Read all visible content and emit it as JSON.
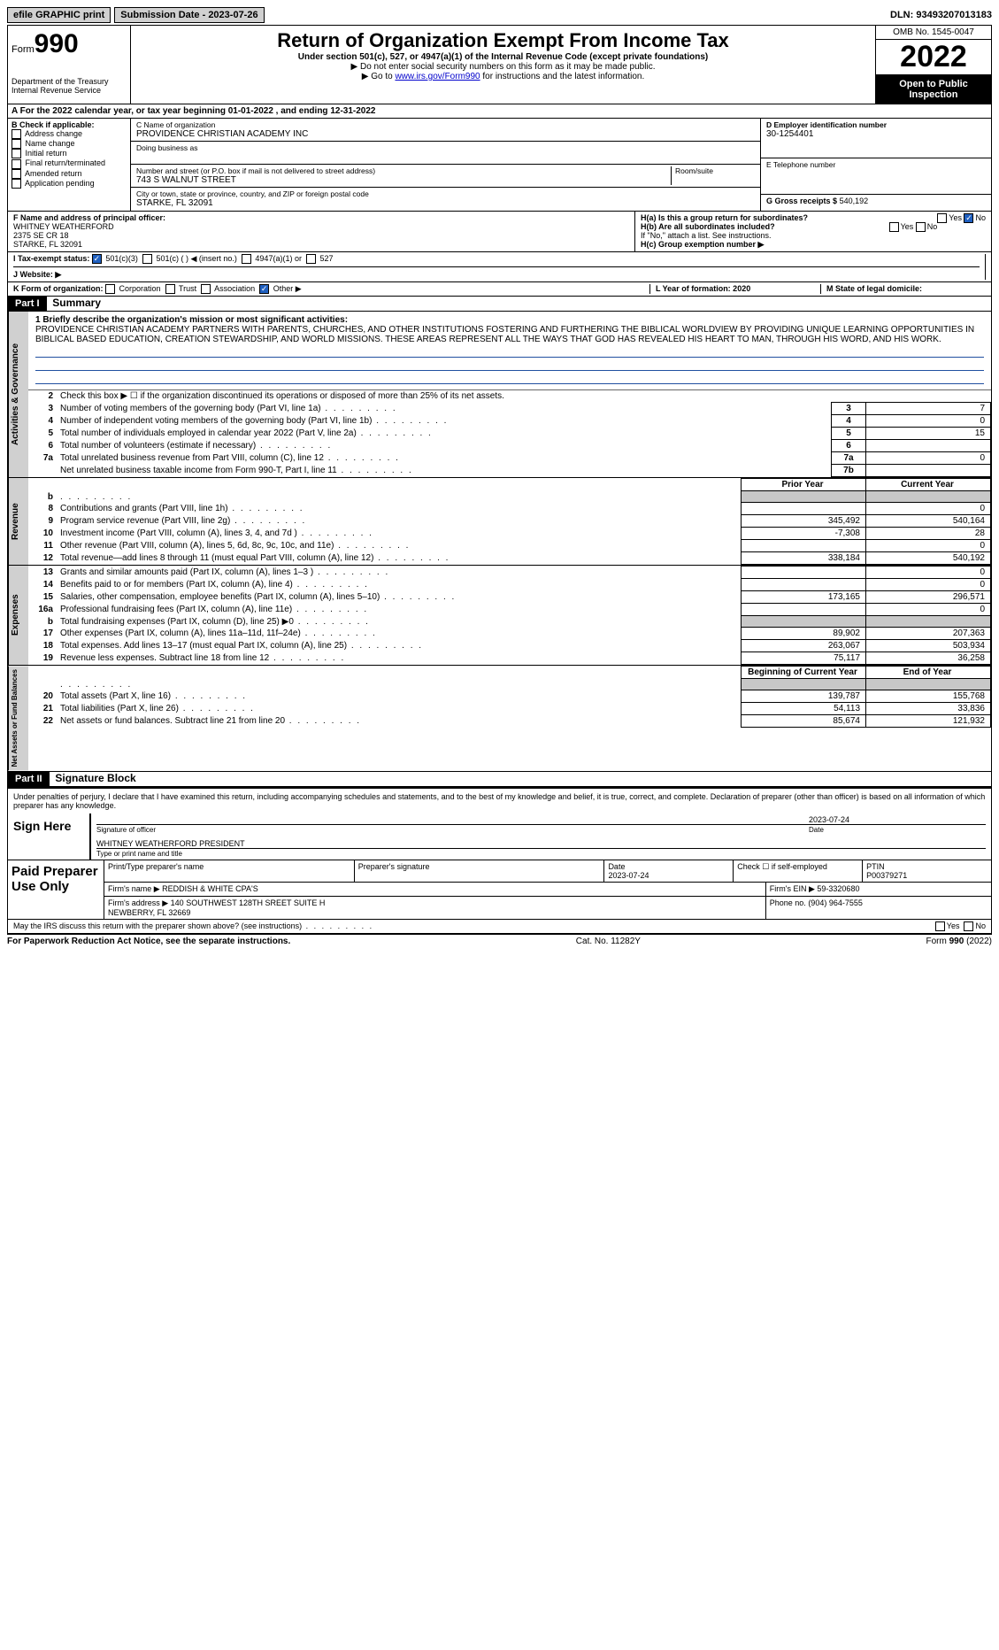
{
  "topbar": {
    "efile": "efile GRAPHIC print",
    "submission": "Submission Date - 2023-07-26",
    "dln": "DLN: 93493207013183"
  },
  "header": {
    "form_prefix": "Form",
    "form_num": "990",
    "title": "Return of Organization Exempt From Income Tax",
    "subtitle": "Under section 501(c), 527, or 4947(a)(1) of the Internal Revenue Code (except private foundations)",
    "note1": "▶ Do not enter social security numbers on this form as it may be made public.",
    "note2_pre": "▶ Go to ",
    "note2_link": "www.irs.gov/Form990",
    "note2_post": " for instructions and the latest information.",
    "dept": "Department of the Treasury\nInternal Revenue Service",
    "omb": "OMB No. 1545-0047",
    "year": "2022",
    "open": "Open to Public Inspection"
  },
  "section_a": "A For the 2022 calendar year, or tax year beginning 01-01-2022   , and ending 12-31-2022",
  "section_b": {
    "title": "B Check if applicable:",
    "items": [
      "Address change",
      "Name change",
      "Initial return",
      "Final return/terminated",
      "Amended return",
      "Application pending"
    ]
  },
  "section_c": {
    "name_lbl": "C Name of organization",
    "name": "PROVIDENCE CHRISTIAN ACADEMY INC",
    "dba_lbl": "Doing business as",
    "addr_lbl": "Number and street (or P.O. box if mail is not delivered to street address)",
    "addr": "743 S WALNUT STREET",
    "room_lbl": "Room/suite",
    "city_lbl": "City or town, state or province, country, and ZIP or foreign postal code",
    "city": "STARKE, FL  32091"
  },
  "section_d": {
    "ein_lbl": "D Employer identification number",
    "ein": "30-1254401",
    "tel_lbl": "E Telephone number",
    "gross_lbl": "G Gross receipts $",
    "gross": "540,192"
  },
  "section_f": {
    "lbl": "F  Name and address of principal officer:",
    "name": "WHITNEY WEATHERFORD",
    "addr1": "2375 SE CR 18",
    "addr2": "STARKE, FL  32091"
  },
  "section_h": {
    "ha": "H(a)  Is this a group return for subordinates?",
    "hb": "H(b)  Are all subordinates included?",
    "hb_note": "If \"No,\" attach a list. See instructions.",
    "hc": "H(c)  Group exemption number ▶"
  },
  "section_i": {
    "lbl": "I   Tax-exempt status:",
    "opts": [
      "501(c)(3)",
      "501(c) (  ) ◀ (insert no.)",
      "4947(a)(1) or",
      "527"
    ]
  },
  "section_j": "J   Website: ▶",
  "section_k": {
    "lbl": "K Form of organization:",
    "opts": [
      "Corporation",
      "Trust",
      "Association",
      "Other ▶"
    ]
  },
  "section_l": "L Year of formation: 2020",
  "section_m": "M State of legal domicile:",
  "part1": {
    "header": "Part I",
    "title": "Summary",
    "q1": "1  Briefly describe the organization's mission or most significant activities:",
    "mission": "PROVIDENCE CHRISTIAN ACADEMY PARTNERS WITH PARENTS, CHURCHES, AND OTHER INSTITUTIONS FOSTERING AND FURTHERING THE BIBLICAL WORLDVIEW BY PROVIDING UNIQUE LEARNING OPPORTUNITIES IN BIBLICAL BASED EDUCATION, CREATION STEWARDSHIP, AND WORLD MISSIONS. THESE AREAS REPRESENT ALL THE WAYS THAT GOD HAS REVEALED HIS HEART TO MAN, THROUGH HIS WORD, AND HIS WORK.",
    "q2": "Check this box ▶ ☐  if the organization discontinued its operations or disposed of more than 25% of its net assets.",
    "rows_gov": [
      {
        "n": "3",
        "t": "Number of voting members of the governing body (Part VI, line 1a)",
        "ln": "3",
        "v": "7"
      },
      {
        "n": "4",
        "t": "Number of independent voting members of the governing body (Part VI, line 1b)",
        "ln": "4",
        "v": "0"
      },
      {
        "n": "5",
        "t": "Total number of individuals employed in calendar year 2022 (Part V, line 2a)",
        "ln": "5",
        "v": "15"
      },
      {
        "n": "6",
        "t": "Total number of volunteers (estimate if necessary)",
        "ln": "6",
        "v": ""
      },
      {
        "n": "7a",
        "t": "Total unrelated business revenue from Part VIII, column (C), line 12",
        "ln": "7a",
        "v": "0"
      },
      {
        "n": "",
        "t": "Net unrelated business taxable income from Form 990-T, Part I, line 11",
        "ln": "7b",
        "v": ""
      }
    ],
    "hdr_py": "Prior Year",
    "hdr_cy": "Current Year",
    "rows_rev": [
      {
        "n": "b",
        "t": "",
        "py": "",
        "cy": "",
        "grey": true
      },
      {
        "n": "8",
        "t": "Contributions and grants (Part VIII, line 1h)",
        "py": "",
        "cy": "0"
      },
      {
        "n": "9",
        "t": "Program service revenue (Part VIII, line 2g)",
        "py": "345,492",
        "cy": "540,164"
      },
      {
        "n": "10",
        "t": "Investment income (Part VIII, column (A), lines 3, 4, and 7d )",
        "py": "-7,308",
        "cy": "28"
      },
      {
        "n": "11",
        "t": "Other revenue (Part VIII, column (A), lines 5, 6d, 8c, 9c, 10c, and 11e)",
        "py": "",
        "cy": "0"
      },
      {
        "n": "12",
        "t": "Total revenue—add lines 8 through 11 (must equal Part VIII, column (A), line 12)",
        "py": "338,184",
        "cy": "540,192"
      }
    ],
    "rows_exp": [
      {
        "n": "13",
        "t": "Grants and similar amounts paid (Part IX, column (A), lines 1–3 )",
        "py": "",
        "cy": "0"
      },
      {
        "n": "14",
        "t": "Benefits paid to or for members (Part IX, column (A), line 4)",
        "py": "",
        "cy": "0"
      },
      {
        "n": "15",
        "t": "Salaries, other compensation, employee benefits (Part IX, column (A), lines 5–10)",
        "py": "173,165",
        "cy": "296,571"
      },
      {
        "n": "16a",
        "t": "Professional fundraising fees (Part IX, column (A), line 11e)",
        "py": "",
        "cy": "0"
      },
      {
        "n": "b",
        "t": "Total fundraising expenses (Part IX, column (D), line 25) ▶0",
        "py": "grey",
        "cy": "grey"
      },
      {
        "n": "17",
        "t": "Other expenses (Part IX, column (A), lines 11a–11d, 11f–24e)",
        "py": "89,902",
        "cy": "207,363"
      },
      {
        "n": "18",
        "t": "Total expenses. Add lines 13–17 (must equal Part IX, column (A), line 25)",
        "py": "263,067",
        "cy": "503,934"
      },
      {
        "n": "19",
        "t": "Revenue less expenses. Subtract line 18 from line 12",
        "py": "75,117",
        "cy": "36,258"
      }
    ],
    "hdr_boy": "Beginning of Current Year",
    "hdr_eoy": "End of Year",
    "rows_net": [
      {
        "n": "",
        "t": "",
        "py": "grey",
        "cy": "grey"
      },
      {
        "n": "20",
        "t": "Total assets (Part X, line 16)",
        "py": "139,787",
        "cy": "155,768"
      },
      {
        "n": "21",
        "t": "Total liabilities (Part X, line 26)",
        "py": "54,113",
        "cy": "33,836"
      },
      {
        "n": "22",
        "t": "Net assets or fund balances. Subtract line 21 from line 20",
        "py": "85,674",
        "cy": "121,932"
      }
    ],
    "vlabels": {
      "gov": "Activities & Governance",
      "rev": "Revenue",
      "exp": "Expenses",
      "net": "Net Assets or Fund Balances"
    }
  },
  "part2": {
    "header": "Part II",
    "title": "Signature Block",
    "decl": "Under penalties of perjury, I declare that I have examined this return, including accompanying schedules and statements, and to the best of my knowledge and belief, it is true, correct, and complete. Declaration of preparer (other than officer) is based on all information of which preparer has any knowledge.",
    "sign_here": "Sign Here",
    "sig_officer": "Signature of officer",
    "sig_date": "2023-07-24",
    "date_lbl": "Date",
    "officer_name": "WHITNEY WEATHERFORD  PRESIDENT",
    "officer_lbl": "Type or print name and title",
    "paid": "Paid Preparer Use Only",
    "prep_name_lbl": "Print/Type preparer's name",
    "prep_sig_lbl": "Preparer's signature",
    "prep_date_lbl": "Date",
    "prep_date": "2023-07-24",
    "check_lbl": "Check ☐ if self-employed",
    "ptin_lbl": "PTIN",
    "ptin": "P00379271",
    "firm_name_lbl": "Firm's name    ▶",
    "firm_name": "REDDISH & WHITE CPA'S",
    "firm_ein_lbl": "Firm's EIN ▶",
    "firm_ein": "59-3320680",
    "firm_addr_lbl": "Firm's address ▶",
    "firm_addr": "140 SOUTHWEST 128TH SREET SUITE H\nNEWBERRY, FL  32669",
    "phone_lbl": "Phone no.",
    "phone": "(904) 964-7555",
    "discuss": "May the IRS discuss this return with the preparer shown above? (see instructions)"
  },
  "footer": {
    "left": "For Paperwork Reduction Act Notice, see the separate instructions.",
    "center": "Cat. No. 11282Y",
    "right": "Form 990 (2022)"
  }
}
